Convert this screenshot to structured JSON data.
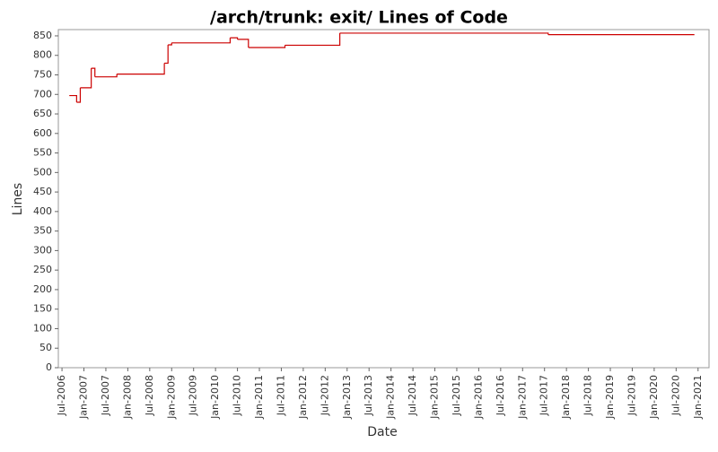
{
  "chart_data": {
    "type": "step",
    "title": "/arch/trunk: exit/ Lines of Code",
    "x_label": "Date",
    "y_label": "Lines",
    "x": [
      "2006-09",
      "2006-11",
      "2006-12",
      "2007-03",
      "2007-04",
      "2007-10",
      "2008-11",
      "2008-12",
      "2009-01",
      "2010-05",
      "2010-07",
      "2010-10",
      "2011-08",
      "2012-11",
      "2017-08",
      "2020-12"
    ],
    "series": [
      {
        "name": "Lines",
        "color": "#cc0000",
        "values": [
          697,
          680,
          717,
          767,
          745,
          752,
          780,
          827,
          832,
          845,
          841,
          820,
          826,
          857,
          853,
          853
        ]
      }
    ],
    "xlim": [
      "2006-06",
      "2021-04"
    ],
    "xticks": [
      {
        "value": "2006-07",
        "label": "Jul-2006"
      },
      {
        "value": "2007-01",
        "label": "Jan-2007"
      },
      {
        "value": "2007-07",
        "label": "Jul-2007"
      },
      {
        "value": "2008-01",
        "label": "Jan-2008"
      },
      {
        "value": "2008-07",
        "label": "Jul-2008"
      },
      {
        "value": "2009-01",
        "label": "Jan-2009"
      },
      {
        "value": "2009-07",
        "label": "Jul-2009"
      },
      {
        "value": "2010-01",
        "label": "Jan-2010"
      },
      {
        "value": "2010-07",
        "label": "Jul-2010"
      },
      {
        "value": "2011-01",
        "label": "Jan-2011"
      },
      {
        "value": "2011-07",
        "label": "Jul-2011"
      },
      {
        "value": "2012-01",
        "label": "Jan-2012"
      },
      {
        "value": "2012-07",
        "label": "Jul-2012"
      },
      {
        "value": "2013-01",
        "label": "Jan-2013"
      },
      {
        "value": "2013-07",
        "label": "Jul-2013"
      },
      {
        "value": "2014-01",
        "label": "Jan-2014"
      },
      {
        "value": "2014-07",
        "label": "Jul-2014"
      },
      {
        "value": "2015-01",
        "label": "Jan-2015"
      },
      {
        "value": "2015-07",
        "label": "Jul-2015"
      },
      {
        "value": "2016-01",
        "label": "Jan-2016"
      },
      {
        "value": "2016-07",
        "label": "Jul-2016"
      },
      {
        "value": "2017-01",
        "label": "Jan-2017"
      },
      {
        "value": "2017-07",
        "label": "Jul-2017"
      },
      {
        "value": "2018-01",
        "label": "Jan-2018"
      },
      {
        "value": "2018-07",
        "label": "Jul-2018"
      },
      {
        "value": "2019-01",
        "label": "Jan-2019"
      },
      {
        "value": "2019-07",
        "label": "Jul-2019"
      },
      {
        "value": "2020-01",
        "label": "Jan-2020"
      },
      {
        "value": "2020-07",
        "label": "Jul-2020"
      },
      {
        "value": "2021-01",
        "label": "Jan-2021"
      }
    ],
    "ylim": [
      0,
      866
    ],
    "yticks": [
      0,
      50,
      100,
      150,
      200,
      250,
      300,
      350,
      400,
      450,
      500,
      550,
      600,
      650,
      700,
      750,
      800,
      850
    ],
    "grid": false
  }
}
